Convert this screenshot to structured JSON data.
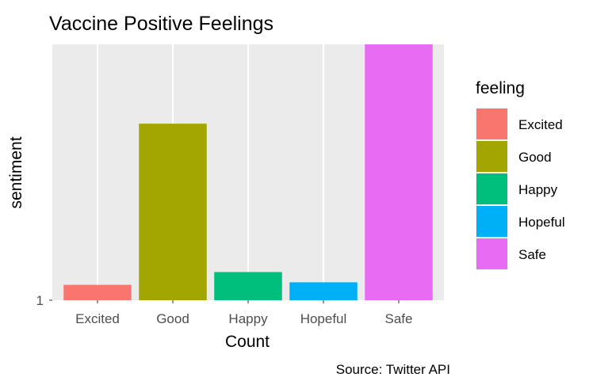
{
  "chart_data": {
    "type": "bar",
    "title": "Vaccine Positive Feelings",
    "xlabel": "Count",
    "ylabel": "sentiment",
    "caption": "Source: Twitter API",
    "categories": [
      "Excited",
      "Good",
      "Happy",
      "Hopeful",
      "Safe"
    ],
    "values": [
      1.06,
      1.69,
      1.11,
      1.07,
      2.0
    ],
    "colors": [
      "#F8766D",
      "#A3A500",
      "#00BF7D",
      "#00B0F6",
      "#E76BF3"
    ],
    "yticks": [
      1
    ],
    "ytick_labels": [
      "1"
    ],
    "ylim": [
      1,
      2
    ],
    "grid": true,
    "legend": {
      "title": "feeling",
      "position": "right",
      "entries": [
        "Excited",
        "Good",
        "Happy",
        "Hopeful",
        "Safe"
      ]
    }
  }
}
